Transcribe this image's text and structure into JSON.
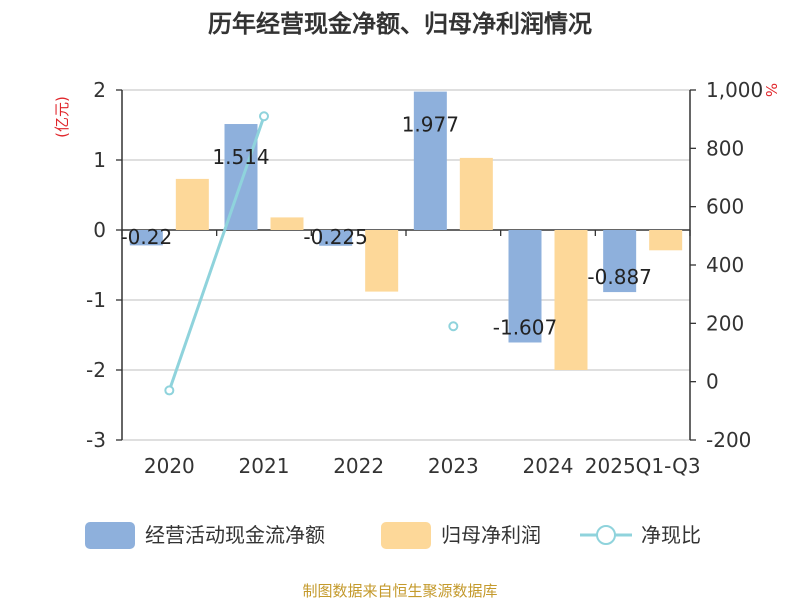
{
  "chart_data": {
    "type": "bar",
    "title": "历年经营现金净额、归母净利润情况",
    "categories": [
      "2020",
      "2021",
      "2022",
      "2023",
      "2024",
      "2025Q1-Q3"
    ],
    "y_left": {
      "unit": "(亿元)",
      "ylim": [
        -3,
        2
      ],
      "ticks": [
        "2",
        "1",
        "0",
        "-1",
        "-2",
        "-3"
      ],
      "tick_values": [
        2,
        1,
        0,
        -1,
        -2,
        -3
      ]
    },
    "y_right": {
      "unit": "%",
      "ylim": [
        -200,
        1000
      ],
      "ticks": [
        "1,000",
        "800",
        "600",
        "400",
        "200",
        "0",
        "-200"
      ],
      "tick_values": [
        1000,
        800,
        600,
        400,
        200,
        0,
        -200
      ]
    },
    "series": [
      {
        "name": "经营活动现金流净额",
        "type": "bar",
        "axis": "left",
        "color": "#8eb0dc",
        "values": [
          -0.22,
          1.514,
          -0.225,
          1.977,
          -1.607,
          -0.887
        ],
        "labels": [
          "-0.22",
          "1.514",
          "-0.225",
          "1.977",
          "-1.607",
          "-0.887"
        ]
      },
      {
        "name": "归母净利润",
        "type": "bar",
        "axis": "left",
        "color": "#fdd899",
        "values": [
          0.73,
          0.18,
          -0.88,
          1.03,
          -2.0,
          -0.29
        ]
      },
      {
        "name": "净现比",
        "type": "line",
        "axis": "right",
        "color": "#8fd3dc",
        "values": [
          -30,
          910,
          null,
          190,
          null,
          null
        ]
      }
    ],
    "grid": true,
    "legend_position": "bottom",
    "source": "制图数据来自恒生聚源数据库"
  }
}
